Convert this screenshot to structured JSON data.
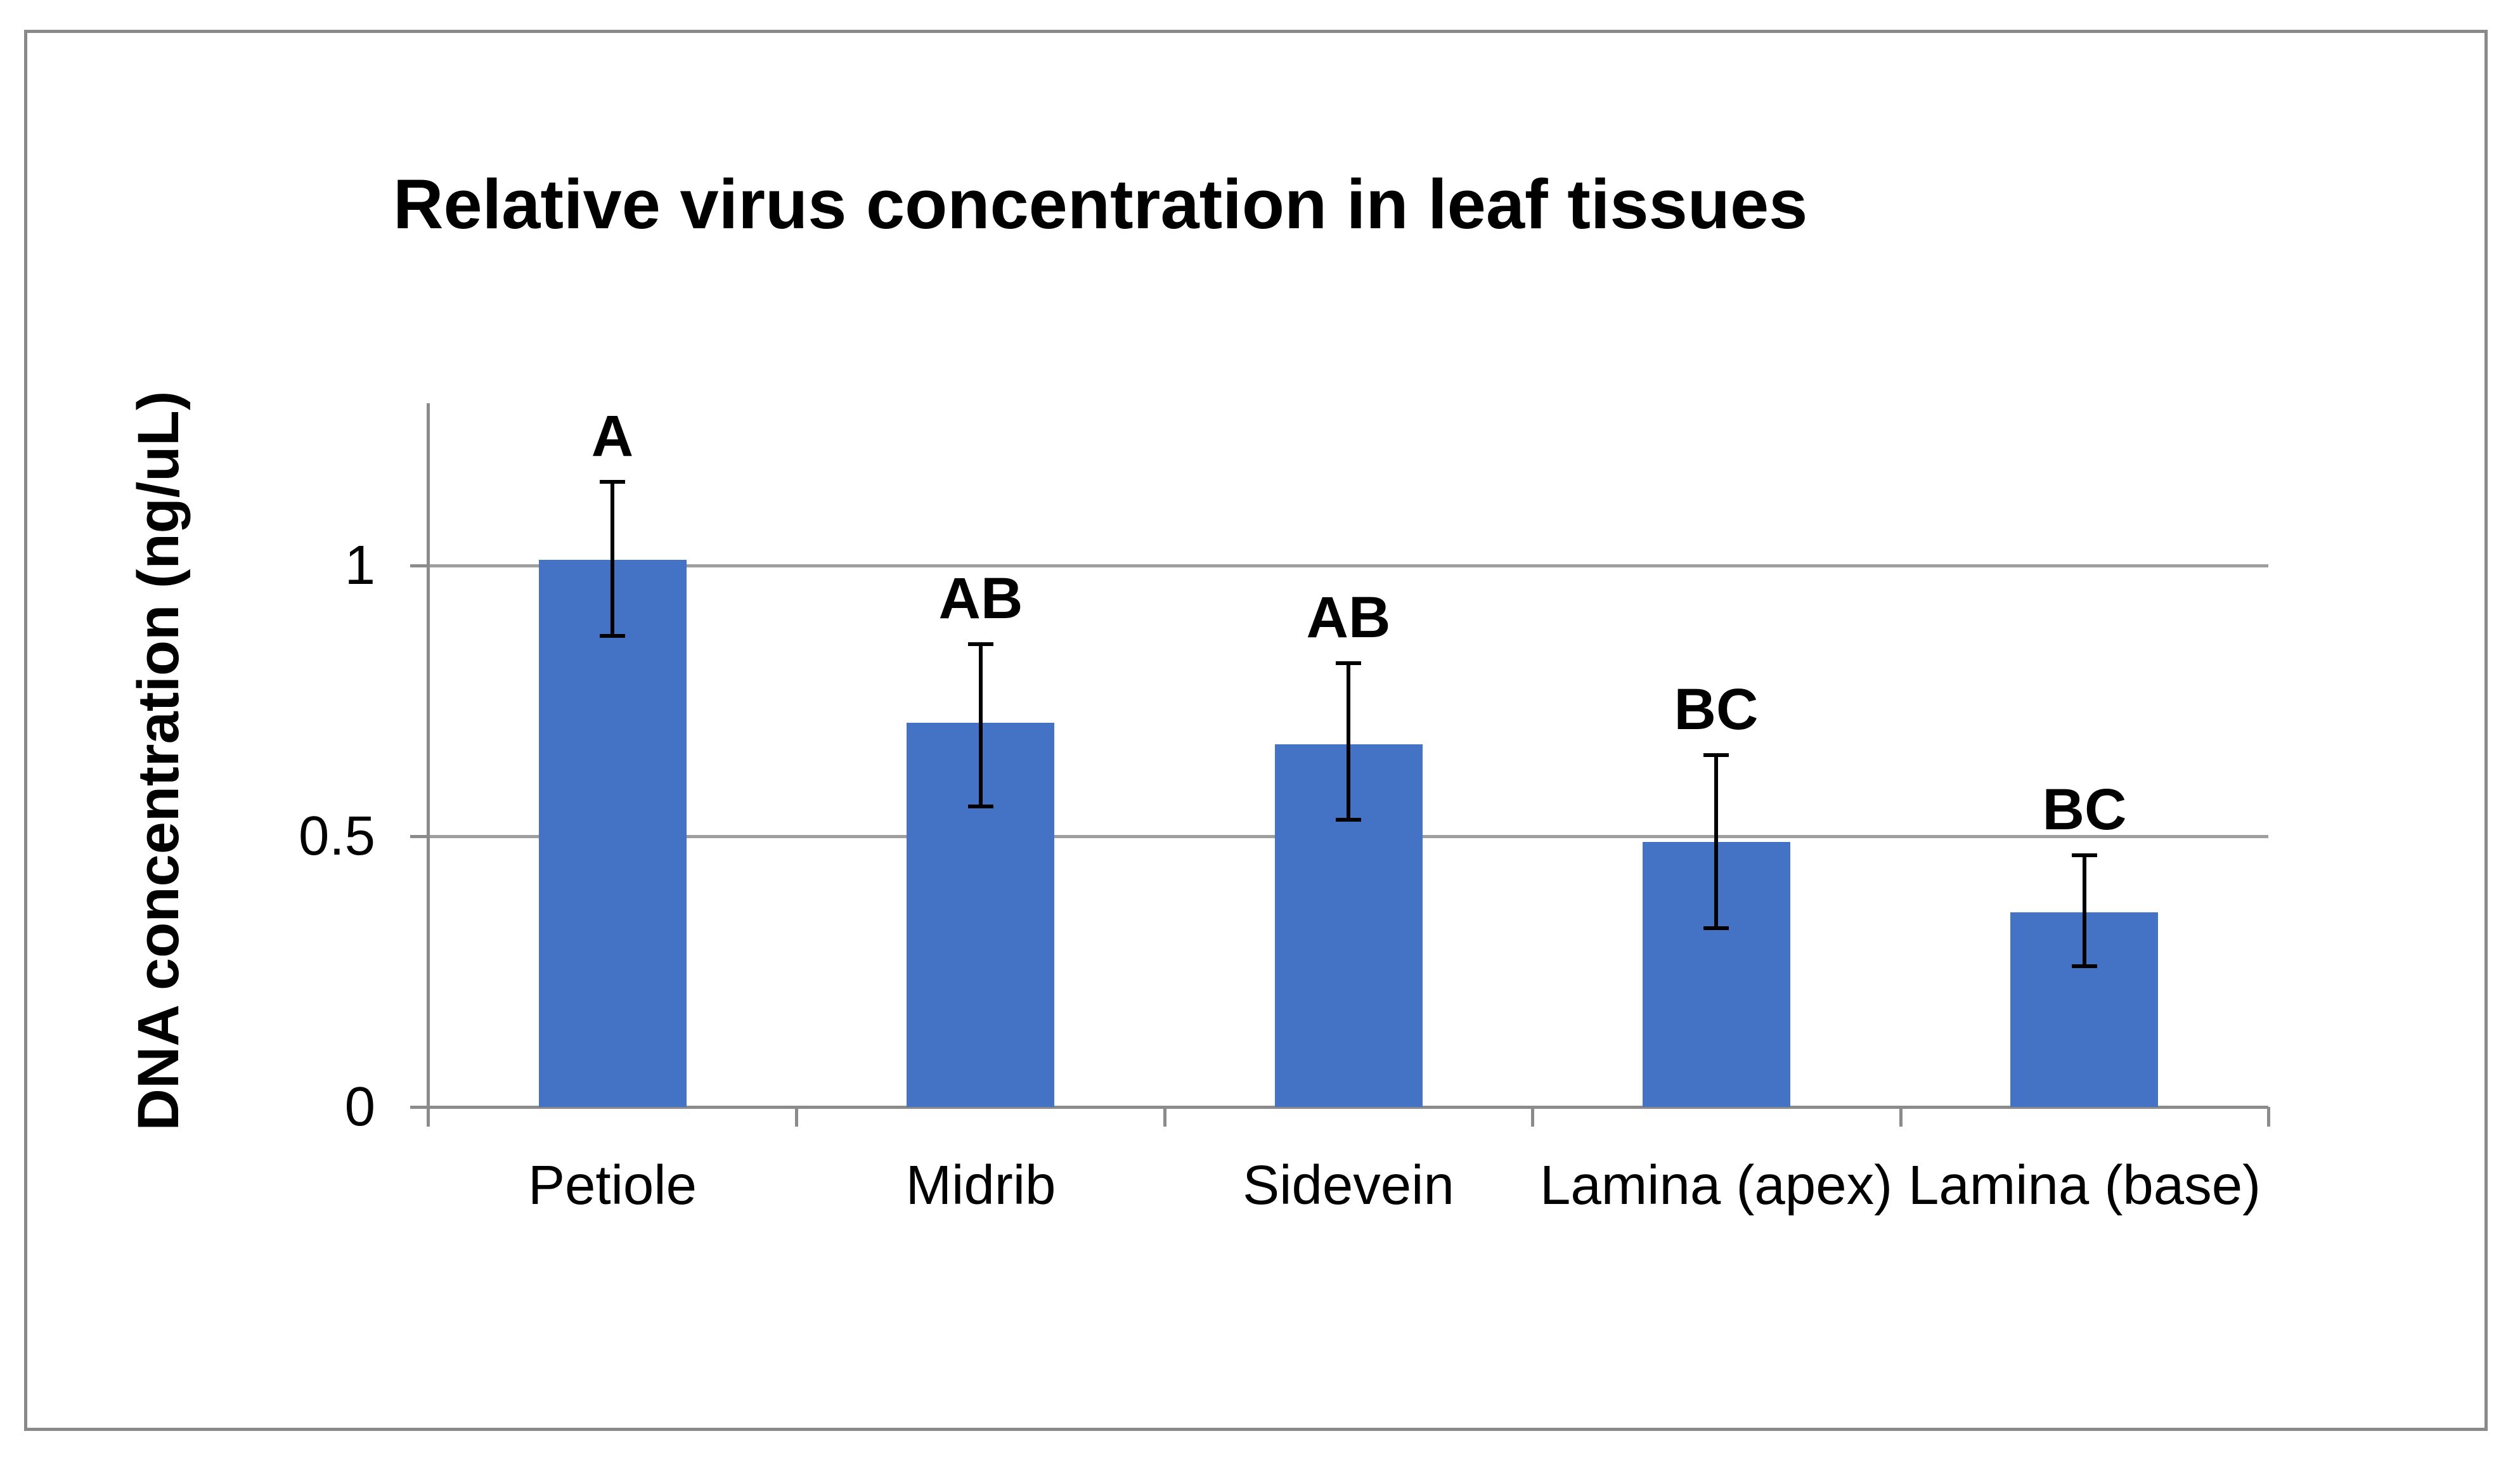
{
  "chart": {
    "title": "Relative virus concentration in leaf tissues",
    "y_axis": {
      "label": "DNA concentration (ng/uL)",
      "ticks": [
        {
          "value": 0,
          "label": "0"
        },
        {
          "value": 0.5,
          "label": "0.5"
        },
        {
          "value": 1,
          "label": "1"
        }
      ]
    }
  },
  "chart_data": {
    "type": "bar",
    "title": "Relative virus concentration in leaf tissues",
    "xlabel": "",
    "ylabel": "DNA concentration (ng/uL)",
    "categories": [
      "Petiole",
      "Midrib",
      "Sidevein",
      "Lamina (apex)",
      "Lamina (base)"
    ],
    "values": [
      1.01,
      0.71,
      0.67,
      0.49,
      0.36
    ],
    "error_bar_upper_bound": [
      1.155,
      0.855,
      0.82,
      0.65,
      0.465
    ],
    "error_bar_lower_bound": [
      0.87,
      0.555,
      0.53,
      0.33,
      0.26
    ],
    "significance_letters": [
      "A",
      "AB",
      "AB",
      "BC",
      "BC"
    ],
    "y_tick_values": [
      0,
      0.5,
      1
    ],
    "y_tick_labels": [
      "0",
      "0.5",
      "1"
    ],
    "ylim": [
      0,
      1.3
    ],
    "grid": "horizontal gridlines at 0.5 and 1",
    "legend_position": "none",
    "bar_color": "#4472C4",
    "error_bar_color": "#000000",
    "axis_color": "#8b8b8b",
    "gridline_color": "#9e9e9e",
    "border_color": "#898989"
  },
  "colors": {
    "background": "#ffffff",
    "bar": "#4472C4",
    "text": "#000000"
  }
}
